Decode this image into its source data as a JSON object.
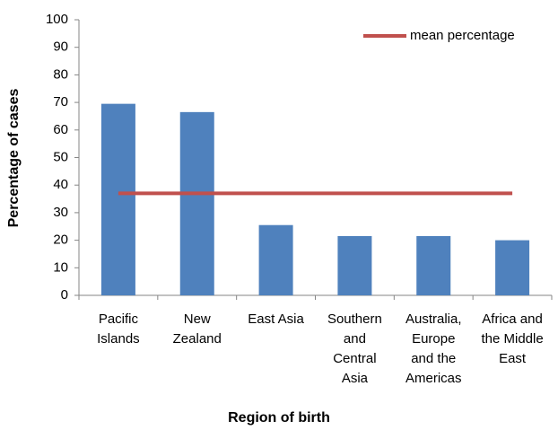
{
  "chart_data": {
    "type": "bar",
    "x_label": "Region of birth",
    "y_label": "Percentage of cases",
    "categories": [
      "Pacific Islands",
      "New Zealand",
      "East Asia",
      "Southern and Central Asia",
      "Australia, Europe and the Americas",
      "Africa and the Middle East"
    ],
    "series": [
      {
        "type": "bar",
        "color": "#4f81bd",
        "values": [
          69.5,
          66.5,
          25.5,
          21.5,
          21.5,
          20
        ]
      },
      {
        "type": "line",
        "name": "mean percentage",
        "color": "#c0504d",
        "values": [
          37,
          37,
          37,
          37,
          37,
          37
        ]
      }
    ],
    "ylim": [
      0,
      100
    ],
    "yticks": [
      0,
      10,
      20,
      30,
      40,
      50,
      60,
      70,
      80,
      90,
      100
    ],
    "legend": "upper right"
  }
}
